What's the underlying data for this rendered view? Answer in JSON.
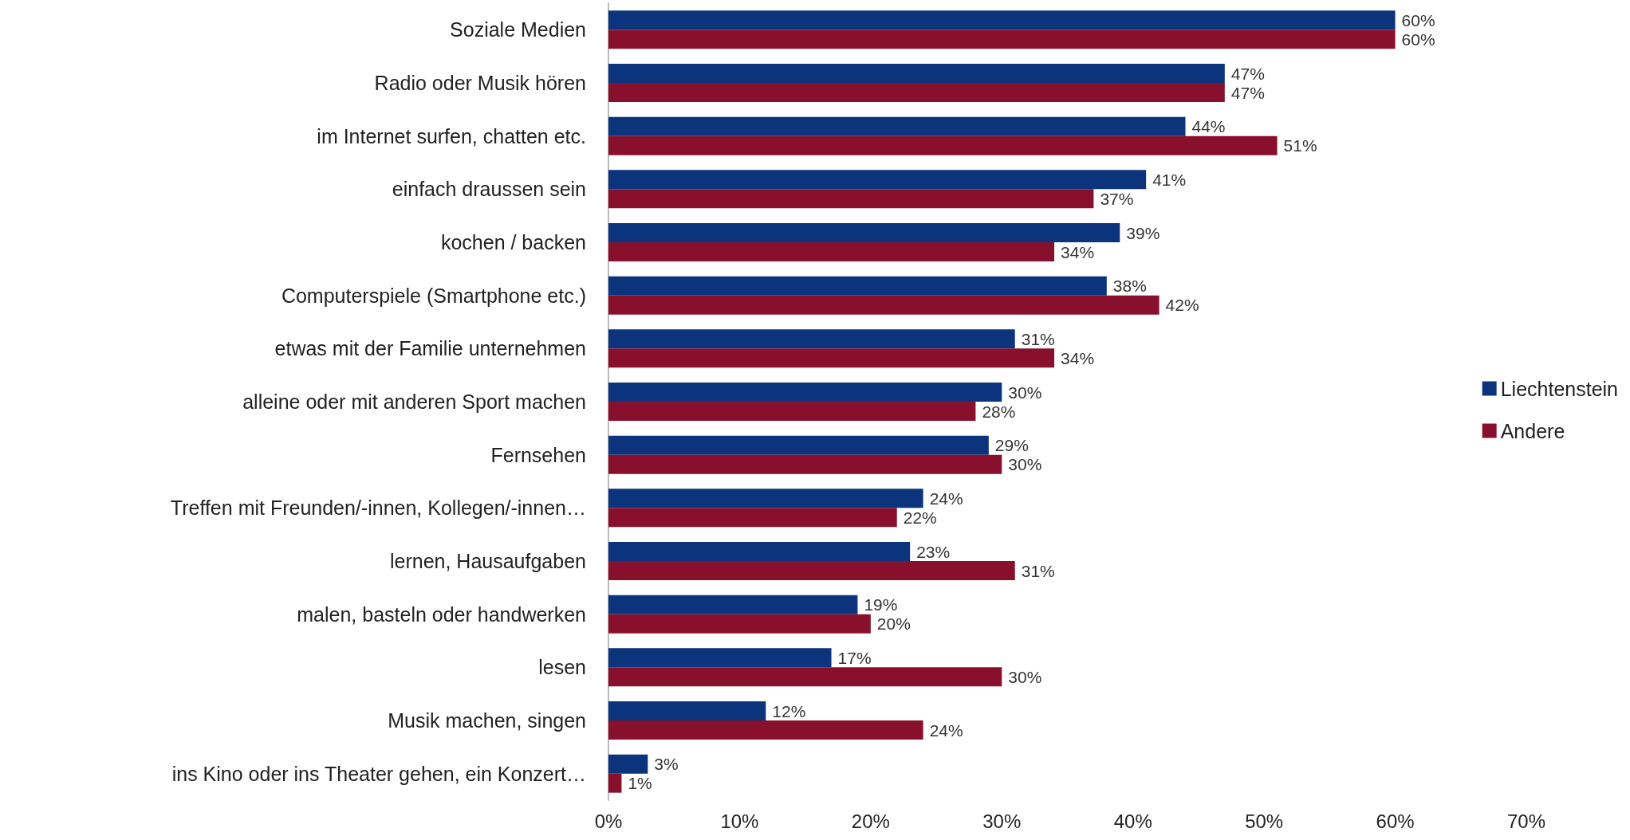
{
  "chart_data": {
    "type": "bar",
    "orientation": "horizontal",
    "categories": [
      "Soziale Medien",
      "Radio oder Musik hören",
      "im Internet surfen, chatten etc.",
      "einfach draussen sein",
      "kochen / backen",
      "Computerspiele (Smartphone etc.)",
      "etwas mit der Familie unternehmen",
      "alleine oder mit anderen Sport machen",
      "Fernsehen",
      "Treffen mit Freunden/-innen, Kollegen/-innen…",
      "lernen, Hausaufgaben",
      "malen, basteln oder handwerken",
      "lesen",
      "Musik machen, singen",
      "ins Kino oder ins Theater gehen, ein Konzert…"
    ],
    "series": [
      {
        "name": "Liechtenstein",
        "color": "#0c347c",
        "values": [
          60,
          47,
          44,
          41,
          39,
          38,
          31,
          30,
          29,
          24,
          23,
          19,
          17,
          12,
          3
        ],
        "value_labels": [
          "60%",
          "47%",
          "44%",
          "41%",
          "39%",
          "38%",
          "31%",
          "30%",
          "29%",
          "24%",
          "23%",
          "19%",
          "17%",
          "12%",
          "3%"
        ]
      },
      {
        "name": "Andere",
        "color": "#88102c",
        "values": [
          60,
          47,
          51,
          37,
          34,
          42,
          34,
          28,
          30,
          22,
          31,
          20,
          30,
          24,
          1
        ],
        "value_labels": [
          "60%",
          "47%",
          "51%",
          "37%",
          "34%",
          "42%",
          "34%",
          "28%",
          "30%",
          "22%",
          "31%",
          "20%",
          "30%",
          "24%",
          "1%"
        ]
      }
    ],
    "xlim": [
      0,
      70
    ],
    "xticks": [
      {
        "value": 0,
        "label": "0%"
      },
      {
        "value": 10,
        "label": "10%"
      },
      {
        "value": 20,
        "label": "20%"
      },
      {
        "value": 30,
        "label": "30%"
      },
      {
        "value": 40,
        "label": "40%"
      },
      {
        "value": 50,
        "label": "50%"
      },
      {
        "value": 60,
        "label": "60%"
      },
      {
        "value": 70,
        "label": "70%"
      }
    ],
    "grid": false,
    "legend": "right"
  }
}
